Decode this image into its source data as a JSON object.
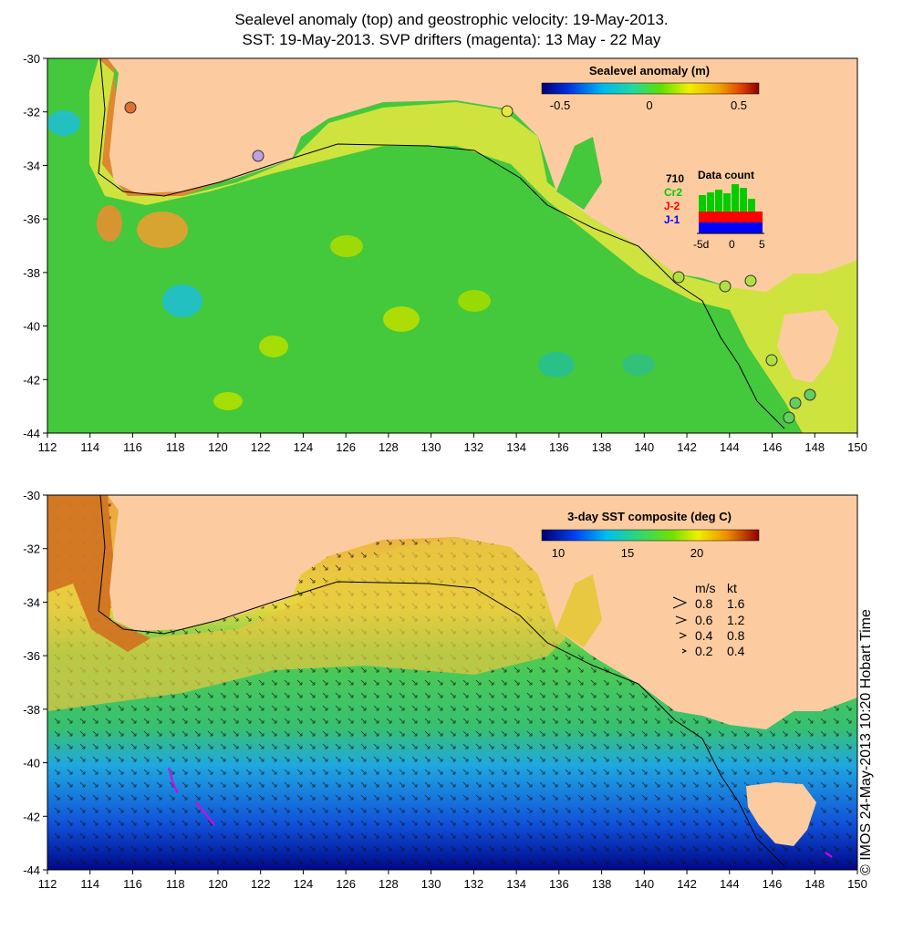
{
  "title": {
    "line1": "Sealevel anomaly (top) and geostrophic velocity: 19-May-2013.",
    "line2": "SST: 19-May-2013. SVP drifters (magenta): 13 May - 22 May"
  },
  "top_map": {
    "colorbar_title": "Sealevel anomaly (m)",
    "colorbar_ticks": [
      "-0.5",
      "0",
      "0.5"
    ],
    "data_count": {
      "label": "Data count",
      "max": "710",
      "legend": [
        {
          "name": "Cr2",
          "color": "#00cc00"
        },
        {
          "name": "J-2",
          "color": "#ff0000"
        },
        {
          "name": "J-1",
          "color": "#0000ff"
        }
      ],
      "xticks": [
        "-5d",
        "0",
        "5"
      ]
    }
  },
  "bottom_map": {
    "colorbar_title": "3-day SST composite (deg C)",
    "colorbar_ticks": [
      "10",
      "15",
      "20"
    ],
    "speed_legend": {
      "header_ms": "m/s",
      "header_kt": "kt",
      "rows": [
        {
          "ms": "0.8",
          "kt": "1.6"
        },
        {
          "ms": "0.6",
          "kt": "1.2"
        },
        {
          "ms": "0.4",
          "kt": "0.8"
        },
        {
          "ms": "0.2",
          "kt": "0.4"
        }
      ]
    }
  },
  "axes": {
    "x_ticks": [
      "112",
      "114",
      "116",
      "118",
      "120",
      "122",
      "124",
      "126",
      "128",
      "130",
      "132",
      "134",
      "136",
      "138",
      "140",
      "142",
      "144",
      "146",
      "148",
      "150"
    ],
    "y_ticks": [
      "-30",
      "-32",
      "-34",
      "-36",
      "-38",
      "-40",
      "-42",
      "-44"
    ]
  },
  "colors": {
    "land": "#fccca0",
    "ocean_green": "#44c83c",
    "coast_yellow": "#e8e840",
    "coast_orange": "#e09028"
  },
  "side_label": "© IMOS 24-May-2013 10:20 Hobart Time"
}
